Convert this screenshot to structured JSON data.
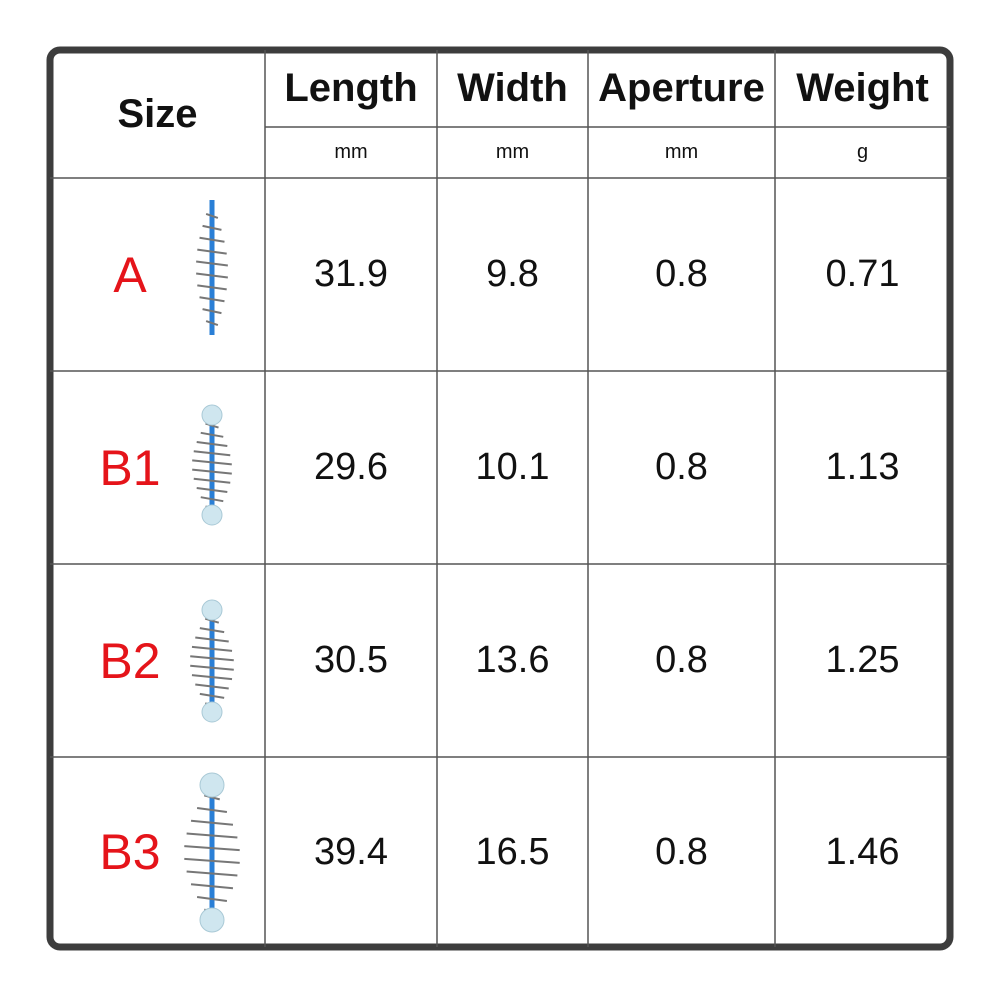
{
  "header": {
    "size": "Size",
    "columns": [
      {
        "name": "Length",
        "unit": "mm"
      },
      {
        "name": "Width",
        "unit": "mm"
      },
      {
        "name": "Aperture",
        "unit": "mm"
      },
      {
        "name": "Weight",
        "unit": "g"
      }
    ]
  },
  "table": {
    "rows": [
      {
        "size": "A",
        "values": [
          31.9,
          9.8,
          0.8,
          0.71
        ]
      },
      {
        "size": "B1",
        "values": [
          29.6,
          10.1,
          0.8,
          1.13
        ]
      },
      {
        "size": "B2",
        "values": [
          30.5,
          13.6,
          0.8,
          1.25
        ]
      },
      {
        "size": "B3",
        "values": [
          39.4,
          16.5,
          0.8,
          1.46
        ]
      }
    ]
  }
}
